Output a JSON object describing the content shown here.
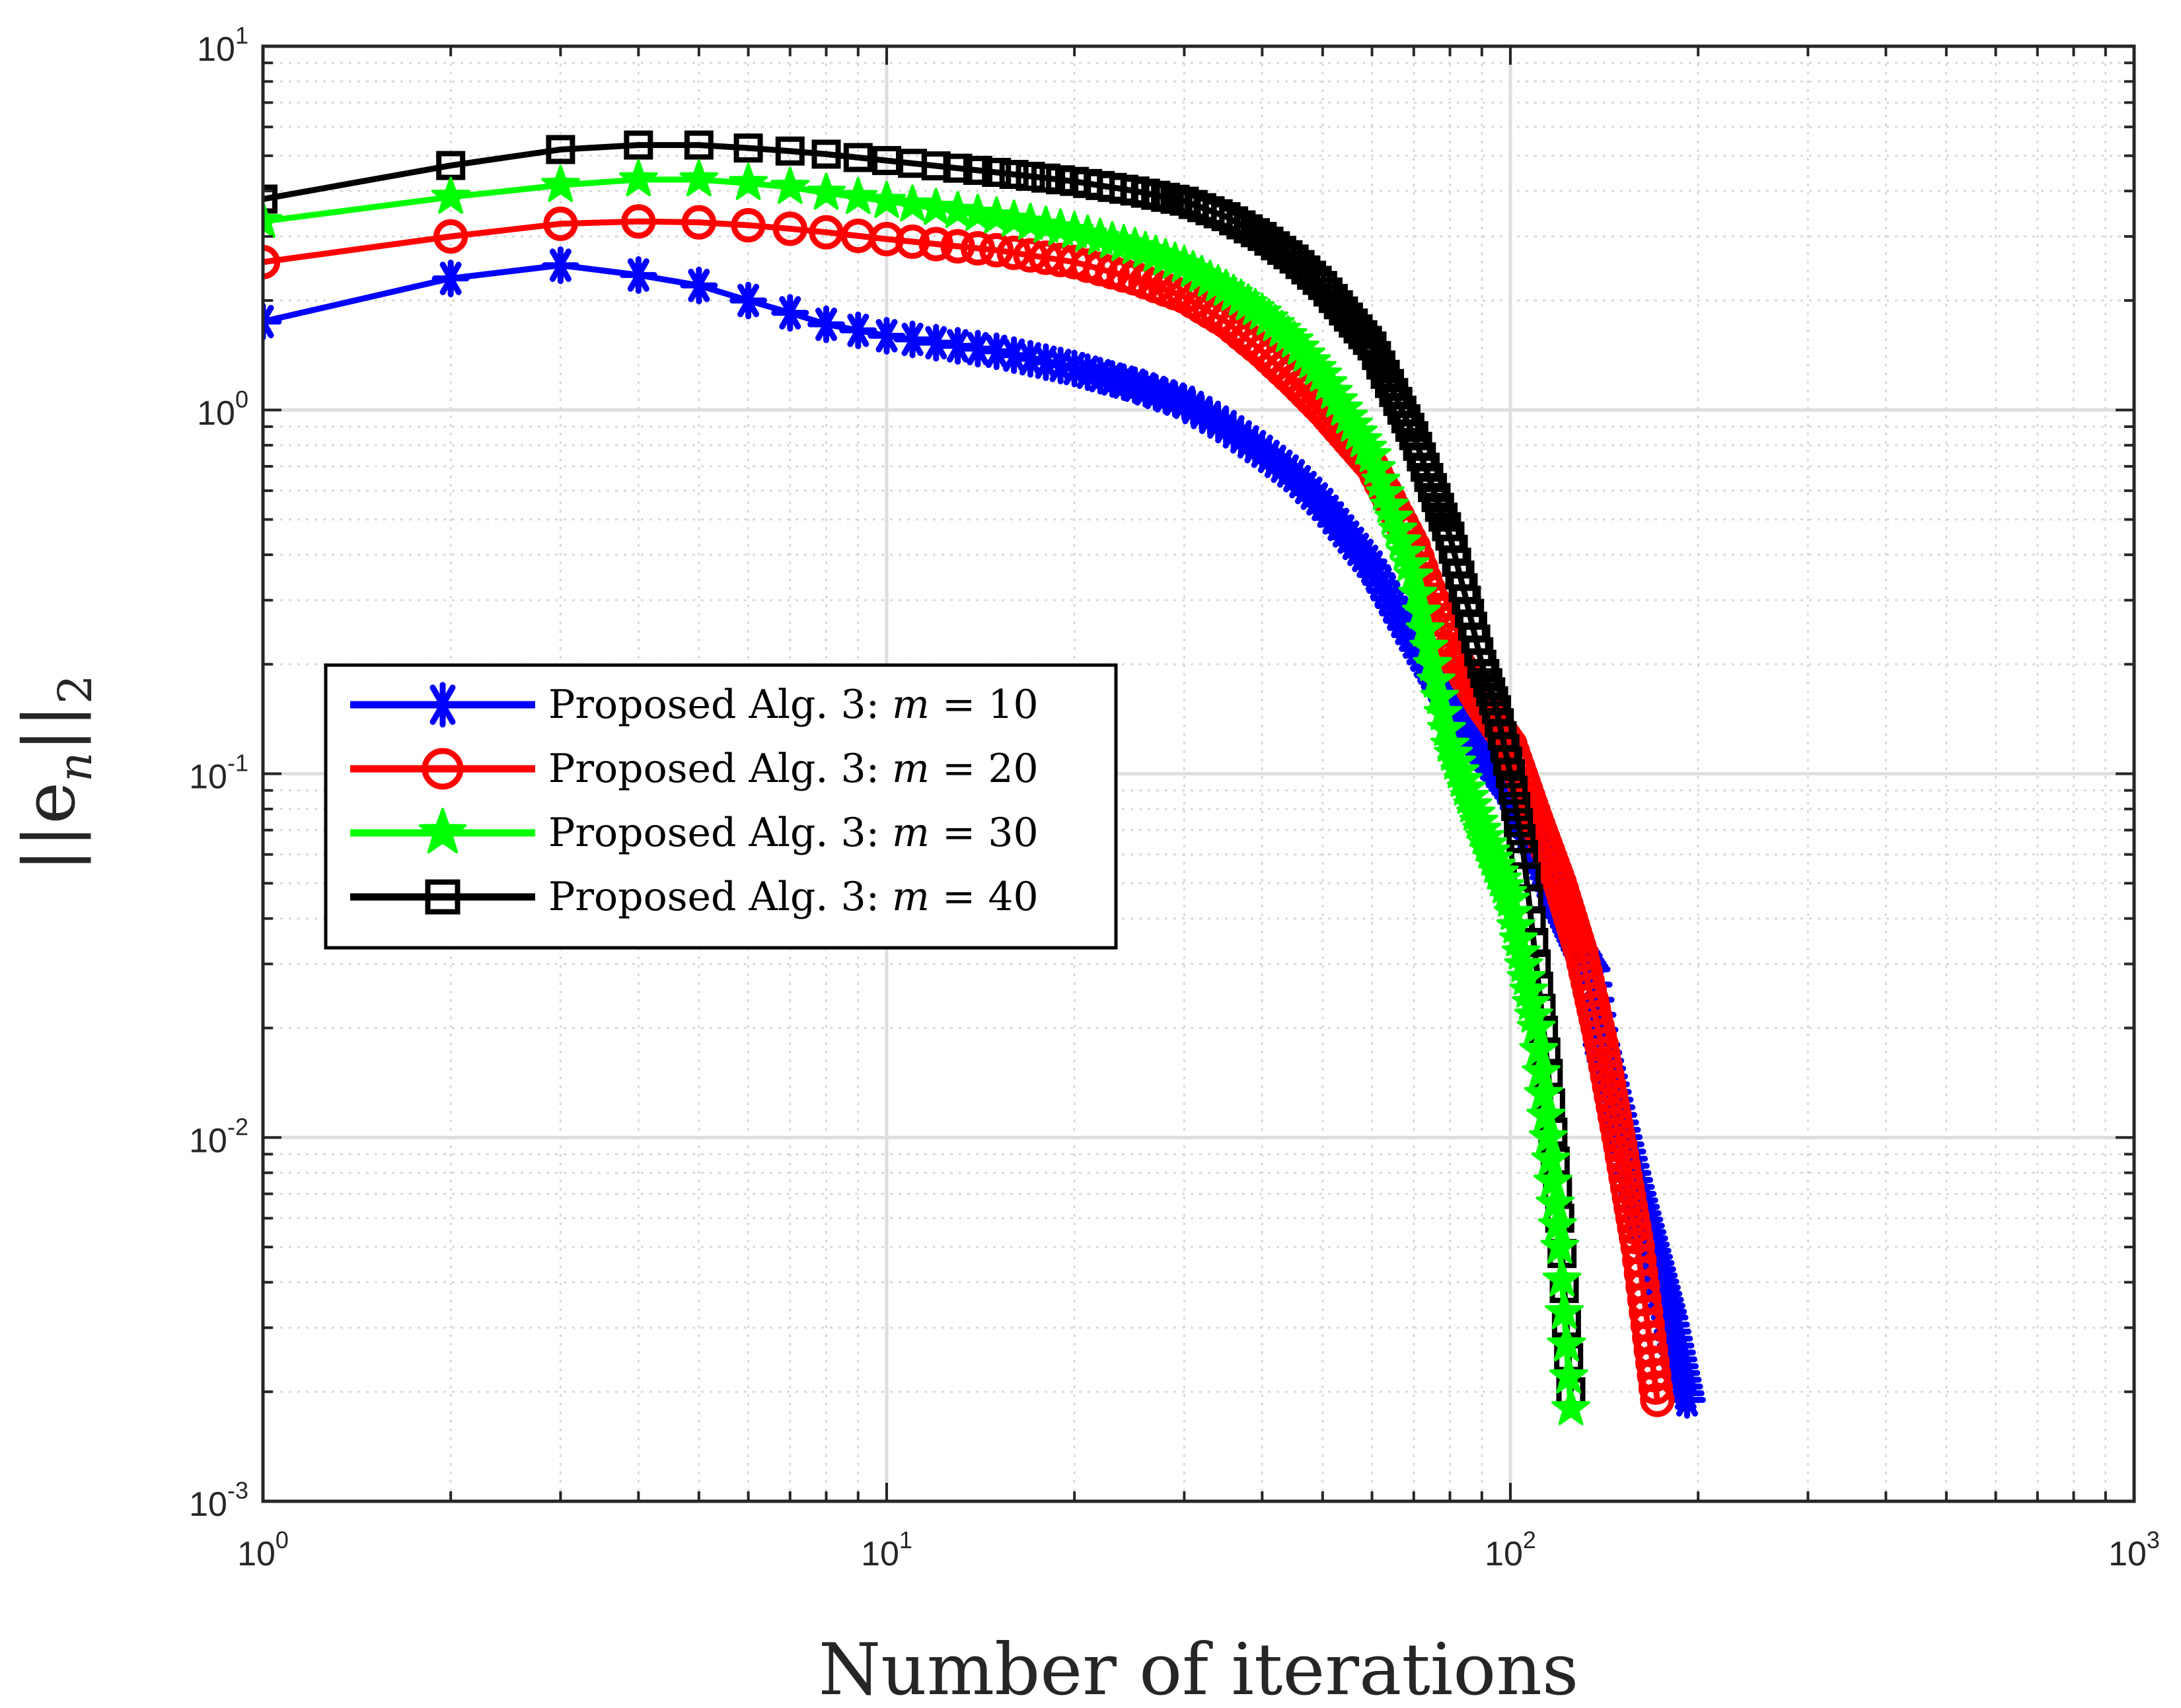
{
  "chart_data": {
    "type": "line",
    "title": "",
    "xlabel": "Number of iterations",
    "ylabel": "||e_n||_2",
    "ylabel_parts": {
      "base": "||e",
      "sub1": "n",
      "mid": "||",
      "sub2": "2"
    },
    "x_scale": "log",
    "y_scale": "log",
    "xlim": [
      1,
      1000
    ],
    "ylim": [
      0.001,
      10
    ],
    "grid": true,
    "minor_grid": true,
    "legend_position": "left-middle",
    "x_ticks": [
      {
        "base": "10",
        "exp": "0",
        "value": 1
      },
      {
        "base": "10",
        "exp": "1",
        "value": 10
      },
      {
        "base": "10",
        "exp": "2",
        "value": 100
      },
      {
        "base": "10",
        "exp": "3",
        "value": 1000
      }
    ],
    "y_ticks": [
      {
        "base": "10",
        "exp": "-3",
        "value": 0.001
      },
      {
        "base": "10",
        "exp": "-2",
        "value": 0.01
      },
      {
        "base": "10",
        "exp": "-1",
        "value": 0.1
      },
      {
        "base": "10",
        "exp": "0",
        "value": 1
      },
      {
        "base": "10",
        "exp": "1",
        "value": 10
      }
    ],
    "series": [
      {
        "name": "Proposed Alg. 3: m = 10",
        "legend_prefix": "Proposed Alg. 3: ",
        "legend_var": "m",
        "legend_value": "= 10",
        "color": "#0000ff",
        "marker": "asterisk",
        "draw_order": 1,
        "x_end": 192,
        "anchors": [
          [
            1,
            1.75
          ],
          [
            2,
            2.3
          ],
          [
            3,
            2.5
          ],
          [
            4,
            2.35
          ],
          [
            5,
            2.2
          ],
          [
            6,
            2.0
          ],
          [
            7,
            1.85
          ],
          [
            8,
            1.72
          ],
          [
            10,
            1.6
          ],
          [
            15,
            1.45
          ],
          [
            20,
            1.3
          ],
          [
            25,
            1.17
          ],
          [
            30,
            1.05
          ],
          [
            35,
            0.9
          ],
          [
            40,
            0.77
          ],
          [
            45,
            0.66
          ],
          [
            50,
            0.55
          ],
          [
            60,
            0.37
          ],
          [
            70,
            0.23
          ],
          [
            80,
            0.155
          ],
          [
            90,
            0.115
          ],
          [
            100,
            0.09
          ],
          [
            110,
            0.063
          ],
          [
            120,
            0.043
          ],
          [
            130,
            0.032
          ],
          [
            135,
            0.029
          ],
          [
            140,
            0.018
          ],
          [
            150,
            0.011
          ],
          [
            160,
            0.007
          ],
          [
            170,
            0.0047
          ],
          [
            180,
            0.0032
          ],
          [
            192,
            0.0019
          ]
        ]
      },
      {
        "name": "Proposed Alg. 3: m = 20",
        "legend_prefix": "Proposed Alg. 3: ",
        "legend_var": "m",
        "legend_value": "= 20",
        "color": "#ff0000",
        "marker": "circle",
        "draw_order": 2,
        "x_end": 172,
        "anchors": [
          [
            1,
            2.55
          ],
          [
            2,
            3.0
          ],
          [
            3,
            3.25
          ],
          [
            4,
            3.3
          ],
          [
            5,
            3.28
          ],
          [
            6,
            3.22
          ],
          [
            7,
            3.15
          ],
          [
            8,
            3.08
          ],
          [
            10,
            2.95
          ],
          [
            15,
            2.75
          ],
          [
            20,
            2.55
          ],
          [
            25,
            2.3
          ],
          [
            30,
            2.05
          ],
          [
            35,
            1.75
          ],
          [
            40,
            1.45
          ],
          [
            45,
            1.2
          ],
          [
            50,
            1.0
          ],
          [
            60,
            0.7
          ],
          [
            70,
            0.42
          ],
          [
            80,
            0.22
          ],
          [
            90,
            0.155
          ],
          [
            100,
            0.12
          ],
          [
            110,
            0.075
          ],
          [
            120,
            0.05
          ],
          [
            130,
            0.032
          ],
          [
            140,
            0.018
          ],
          [
            150,
            0.0095
          ],
          [
            160,
            0.005
          ],
          [
            172,
            0.0019
          ]
        ]
      },
      {
        "name": "Proposed Alg. 3: m = 40",
        "legend_prefix": "Proposed Alg. 3: ",
        "legend_var": "m",
        "legend_value": "= 40",
        "color": "#000000",
        "marker": "square",
        "draw_order": 3,
        "x_end": 125,
        "anchors": [
          [
            1,
            3.8
          ],
          [
            2,
            4.7
          ],
          [
            3,
            5.2
          ],
          [
            4,
            5.35
          ],
          [
            5,
            5.35
          ],
          [
            6,
            5.25
          ],
          [
            7,
            5.15
          ],
          [
            8,
            5.05
          ],
          [
            10,
            4.85
          ],
          [
            15,
            4.5
          ],
          [
            20,
            4.25
          ],
          [
            25,
            4.0
          ],
          [
            30,
            3.75
          ],
          [
            35,
            3.4
          ],
          [
            40,
            3.0
          ],
          [
            45,
            2.6
          ],
          [
            50,
            2.2
          ],
          [
            60,
            1.5
          ],
          [
            70,
            0.85
          ],
          [
            80,
            0.45
          ],
          [
            85,
            0.3
          ],
          [
            90,
            0.2
          ],
          [
            95,
            0.15
          ],
          [
            100,
            0.1
          ],
          [
            105,
            0.06
          ],
          [
            110,
            0.03
          ],
          [
            115,
            0.015
          ],
          [
            120,
            0.006
          ],
          [
            125,
            0.002
          ]
        ]
      },
      {
        "name": "Proposed Alg. 3: m = 30",
        "legend_prefix": "Proposed Alg. 3: ",
        "legend_var": "m",
        "legend_value": "= 30",
        "color": "#00ff00",
        "marker": "star",
        "draw_order": 4,
        "x_end": 125,
        "anchors": [
          [
            1,
            3.3
          ],
          [
            2,
            3.85
          ],
          [
            3,
            4.15
          ],
          [
            4,
            4.3
          ],
          [
            5,
            4.3
          ],
          [
            6,
            4.2
          ],
          [
            7,
            4.1
          ],
          [
            8,
            3.95
          ],
          [
            10,
            3.75
          ],
          [
            15,
            3.4
          ],
          [
            20,
            3.1
          ],
          [
            25,
            2.8
          ],
          [
            30,
            2.5
          ],
          [
            35,
            2.15
          ],
          [
            40,
            1.85
          ],
          [
            45,
            1.55
          ],
          [
            50,
            1.25
          ],
          [
            60,
            0.75
          ],
          [
            70,
            0.35
          ],
          [
            75,
            0.2
          ],
          [
            80,
            0.12
          ],
          [
            90,
            0.07
          ],
          [
            100,
            0.045
          ],
          [
            110,
            0.02
          ],
          [
            115,
            0.01
          ],
          [
            120,
            0.005
          ],
          [
            125,
            0.0018
          ]
        ]
      }
    ]
  }
}
